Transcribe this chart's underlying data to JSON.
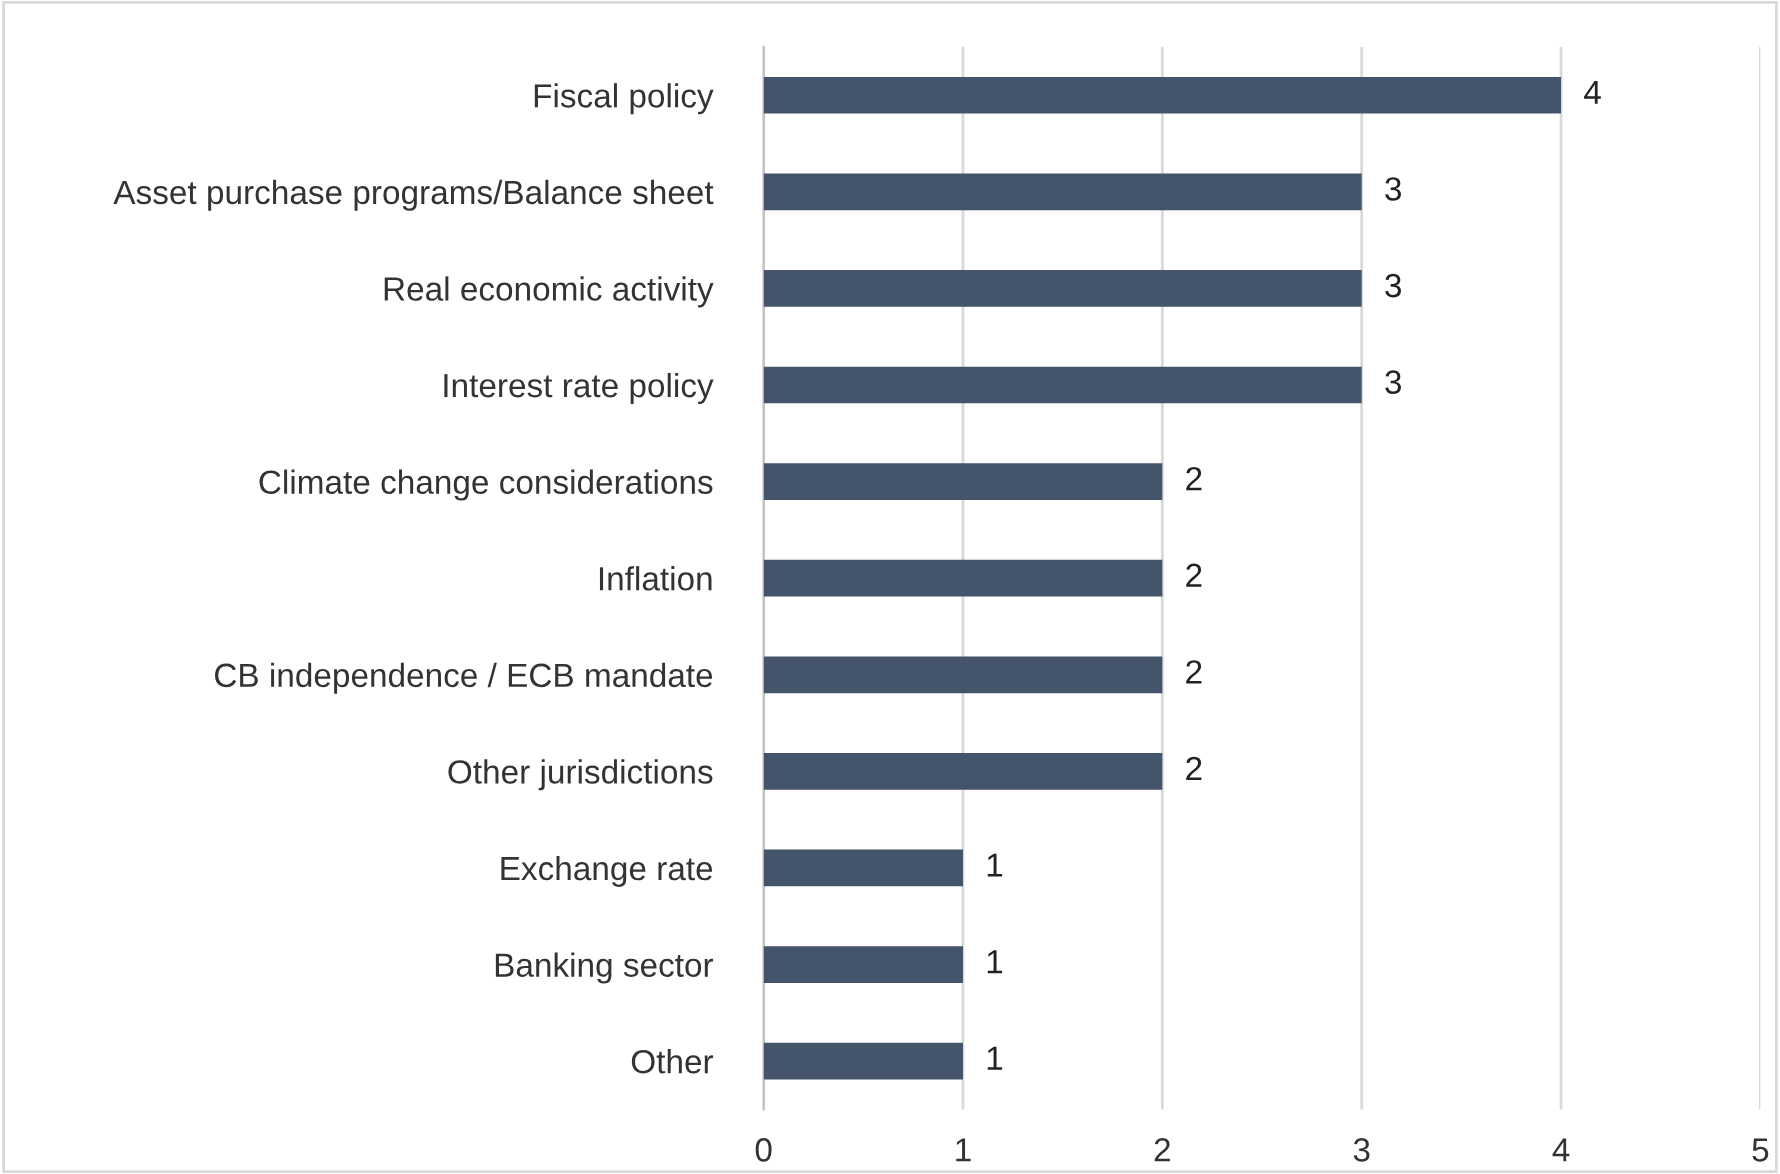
{
  "chart_data": {
    "type": "bar",
    "orientation": "horizontal",
    "categories": [
      "Fiscal policy",
      "Asset purchase programs/Balance sheet",
      "Real economic activity",
      "Interest rate policy",
      "Climate change considerations",
      "Inflation",
      "CB independence / ECB mandate",
      "Other jurisdictions",
      "Exchange rate",
      "Banking sector",
      "Other"
    ],
    "values": [
      4,
      3,
      3,
      3,
      2,
      2,
      2,
      2,
      1,
      1,
      1
    ],
    "color": "#44546a",
    "xlim": [
      0,
      5
    ],
    "xticks": [
      0,
      1,
      2,
      3,
      4,
      5
    ],
    "grid": "x",
    "data_labels": true
  }
}
